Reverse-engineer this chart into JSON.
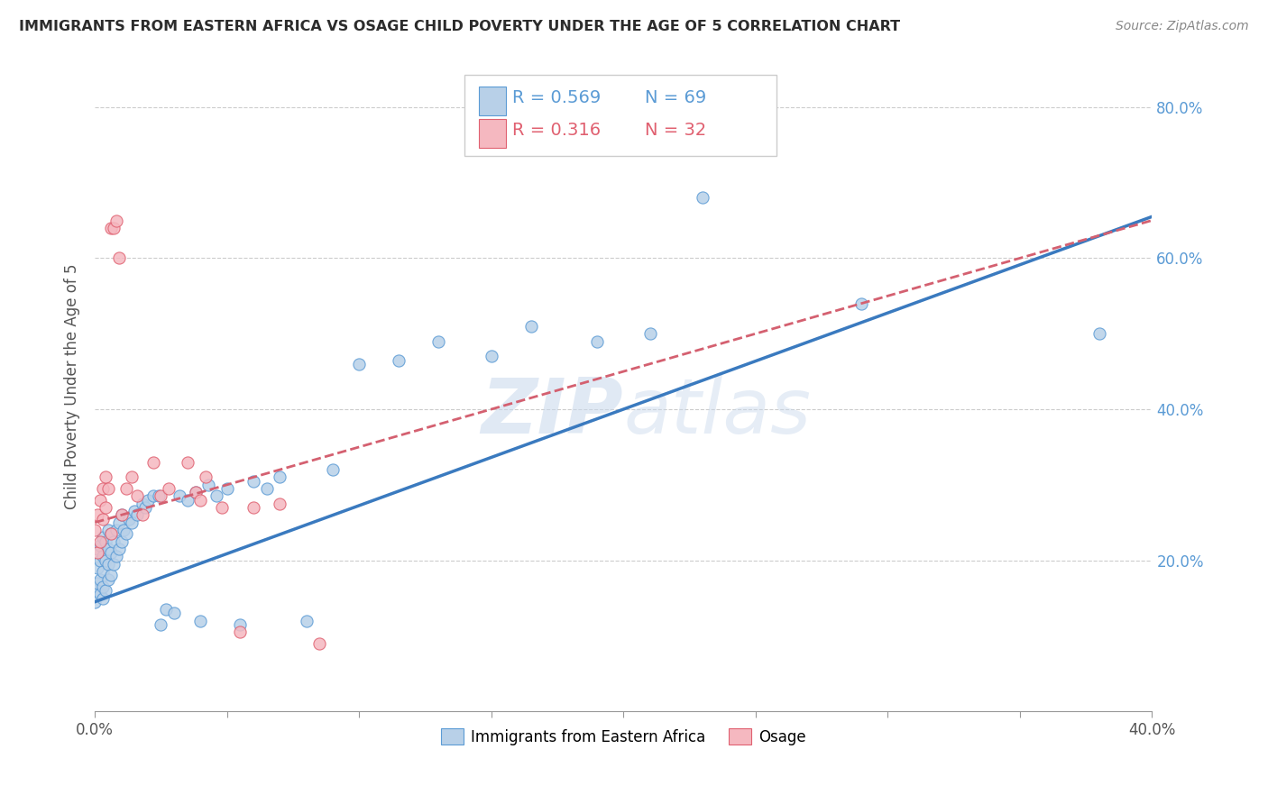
{
  "title": "IMMIGRANTS FROM EASTERN AFRICA VS OSAGE CHILD POVERTY UNDER THE AGE OF 5 CORRELATION CHART",
  "source": "Source: ZipAtlas.com",
  "ylabel": "Child Poverty Under the Age of 5",
  "watermark": "ZIPatlas",
  "legend_r1": "R = 0.569",
  "legend_n1": "N = 69",
  "legend_r2": "R = 0.316",
  "legend_n2": "N = 32",
  "legend_label1": "Immigrants from Eastern Africa",
  "legend_label2": "Osage",
  "blue_fill": "#b8d0e8",
  "blue_edge": "#5b9bd5",
  "pink_fill": "#f5b8c0",
  "pink_edge": "#e06070",
  "blue_line_color": "#3a7abf",
  "pink_line_color": "#d46070",
  "xlim": [
    0.0,
    0.4
  ],
  "ylim": [
    0.0,
    0.86
  ],
  "blue_scatter_x": [
    0.0,
    0.0,
    0.001,
    0.001,
    0.001,
    0.002,
    0.002,
    0.002,
    0.002,
    0.003,
    0.003,
    0.003,
    0.003,
    0.003,
    0.004,
    0.004,
    0.004,
    0.005,
    0.005,
    0.005,
    0.005,
    0.006,
    0.006,
    0.006,
    0.007,
    0.007,
    0.008,
    0.008,
    0.009,
    0.009,
    0.01,
    0.01,
    0.011,
    0.012,
    0.013,
    0.014,
    0.015,
    0.016,
    0.018,
    0.019,
    0.02,
    0.022,
    0.024,
    0.025,
    0.027,
    0.03,
    0.032,
    0.035,
    0.038,
    0.04,
    0.043,
    0.046,
    0.05,
    0.055,
    0.06,
    0.065,
    0.07,
    0.08,
    0.09,
    0.1,
    0.115,
    0.13,
    0.15,
    0.165,
    0.19,
    0.21,
    0.23,
    0.29,
    0.38
  ],
  "blue_scatter_y": [
    0.145,
    0.16,
    0.17,
    0.19,
    0.215,
    0.155,
    0.175,
    0.2,
    0.22,
    0.15,
    0.165,
    0.185,
    0.205,
    0.23,
    0.16,
    0.2,
    0.225,
    0.175,
    0.195,
    0.215,
    0.24,
    0.18,
    0.21,
    0.235,
    0.195,
    0.225,
    0.205,
    0.24,
    0.215,
    0.25,
    0.225,
    0.26,
    0.24,
    0.235,
    0.255,
    0.25,
    0.265,
    0.26,
    0.275,
    0.27,
    0.28,
    0.285,
    0.285,
    0.115,
    0.135,
    0.13,
    0.285,
    0.28,
    0.29,
    0.12,
    0.3,
    0.285,
    0.295,
    0.115,
    0.305,
    0.295,
    0.31,
    0.12,
    0.32,
    0.46,
    0.465,
    0.49,
    0.47,
    0.51,
    0.49,
    0.5,
    0.68,
    0.54,
    0.5
  ],
  "pink_scatter_x": [
    0.0,
    0.001,
    0.001,
    0.002,
    0.002,
    0.003,
    0.003,
    0.004,
    0.004,
    0.005,
    0.006,
    0.006,
    0.007,
    0.008,
    0.009,
    0.01,
    0.012,
    0.014,
    0.016,
    0.018,
    0.022,
    0.025,
    0.028,
    0.035,
    0.038,
    0.04,
    0.042,
    0.048,
    0.055,
    0.06,
    0.07,
    0.085
  ],
  "pink_scatter_y": [
    0.24,
    0.26,
    0.21,
    0.28,
    0.225,
    0.295,
    0.255,
    0.31,
    0.27,
    0.295,
    0.64,
    0.235,
    0.64,
    0.65,
    0.6,
    0.26,
    0.295,
    0.31,
    0.285,
    0.26,
    0.33,
    0.285,
    0.295,
    0.33,
    0.29,
    0.28,
    0.31,
    0.27,
    0.105,
    0.27,
    0.275,
    0.09
  ],
  "blue_line_x": [
    0.0,
    0.4
  ],
  "blue_line_y": [
    0.145,
    0.655
  ],
  "pink_line_x": [
    0.0,
    0.4
  ],
  "pink_line_y": [
    0.25,
    0.65
  ]
}
